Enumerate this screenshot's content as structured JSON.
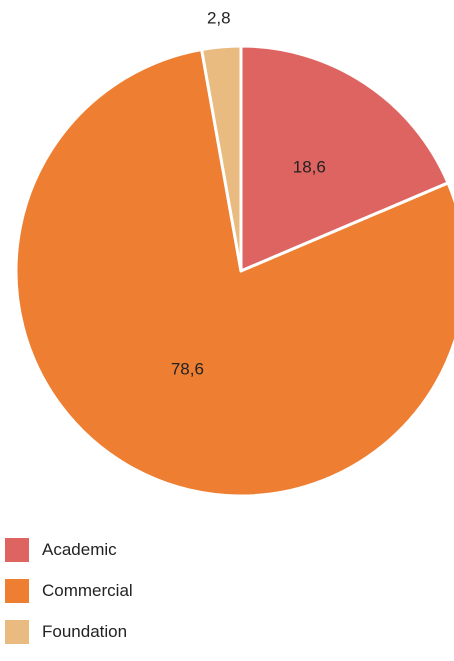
{
  "chart_data": {
    "type": "pie",
    "categories": [
      "Academic",
      "Commercial",
      "Foundation"
    ],
    "values": [
      18.6,
      78.6,
      2.8
    ],
    "value_labels": [
      "18,6",
      "78,6",
      "2,8"
    ],
    "colors": [
      "#dd6461",
      "#ee7f32",
      "#e9bb80"
    ],
    "start_angle": "12 o'clock",
    "direction": "clockwise",
    "legend_position": "bottom-left"
  }
}
